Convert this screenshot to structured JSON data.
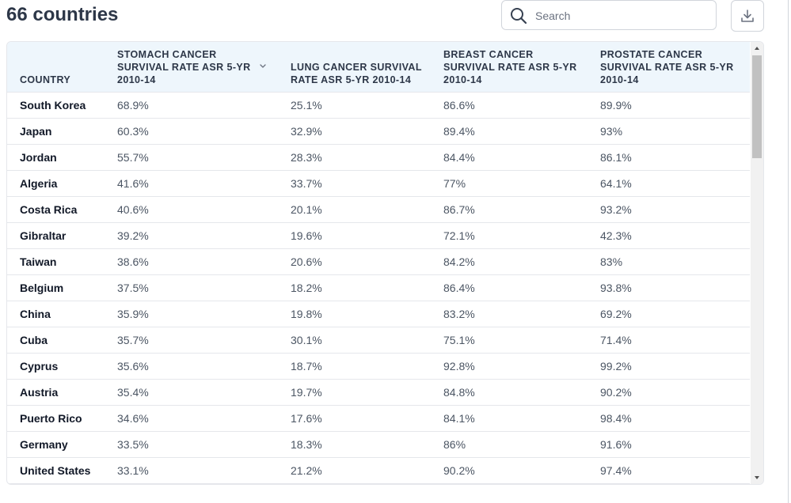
{
  "header": {
    "title": "66 countries",
    "search": {
      "placeholder": "Search",
      "value": ""
    },
    "download_icon": "download-icon"
  },
  "table": {
    "columns": [
      "COUNTRY",
      "STOMACH CANCER SURVIVAL RATE ASR 5-YR 2010-14",
      "LUNG CANCER SURVIVAL RATE ASR 5-YR 2010-14",
      "BREAST CANCER SURVIVAL RATE ASR 5-YR 2010-14",
      "PROSTATE CANCER SURVIVAL RATE ASR 5-YR 2010-14"
    ],
    "sorted_column_icon": "chevron-down-icon",
    "rows": [
      [
        "South Korea",
        "68.9%",
        "25.1%",
        "86.6%",
        "89.9%"
      ],
      [
        "Japan",
        "60.3%",
        "32.9%",
        "89.4%",
        "93%"
      ],
      [
        "Jordan",
        "55.7%",
        "28.3%",
        "84.4%",
        "86.1%"
      ],
      [
        "Algeria",
        "41.6%",
        "33.7%",
        "77%",
        "64.1%"
      ],
      [
        "Costa Rica",
        "40.6%",
        "20.1%",
        "86.7%",
        "93.2%"
      ],
      [
        "Gibraltar",
        "39.2%",
        "19.6%",
        "72.1%",
        "42.3%"
      ],
      [
        "Taiwan",
        "38.6%",
        "20.6%",
        "84.2%",
        "83%"
      ],
      [
        "Belgium",
        "37.5%",
        "18.2%",
        "86.4%",
        "93.8%"
      ],
      [
        "China",
        "35.9%",
        "19.8%",
        "83.2%",
        "69.2%"
      ],
      [
        "Cuba",
        "35.7%",
        "30.1%",
        "75.1%",
        "71.4%"
      ],
      [
        "Cyprus",
        "35.6%",
        "18.7%",
        "92.8%",
        "99.2%"
      ],
      [
        "Austria",
        "35.4%",
        "19.7%",
        "84.8%",
        "90.2%"
      ],
      [
        "Puerto Rico",
        "34.6%",
        "17.6%",
        "84.1%",
        "98.4%"
      ],
      [
        "Germany",
        "33.5%",
        "18.3%",
        "86%",
        "91.6%"
      ],
      [
        "United States",
        "33.1%",
        "21.2%",
        "90.2%",
        "97.4%"
      ]
    ]
  }
}
